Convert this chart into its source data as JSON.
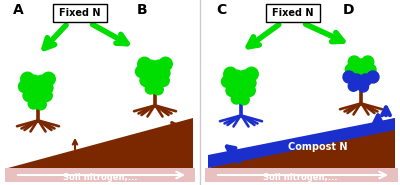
{
  "bg_color": "#ffffff",
  "GREEN": "#00DD00",
  "BROWN": "#7B2800",
  "BLUE": "#1A2FCC",
  "WHITE": "#ffffff",
  "BLACK": "#000000",
  "DARK_BROWN": "#5C1A00",
  "LIGHT_PINK": "#F0D0D0",
  "left_panel": {
    "label_A": "A",
    "label_B": "B",
    "fixed_n_box": "Fixed N",
    "soil_text": "Soil nitrogen,..."
  },
  "right_panel": {
    "label_C": "C",
    "label_D": "D",
    "fixed_n_box": "Fixed N",
    "soil_text": "Soil nitrogen,...",
    "compost_text": "Compost N"
  }
}
